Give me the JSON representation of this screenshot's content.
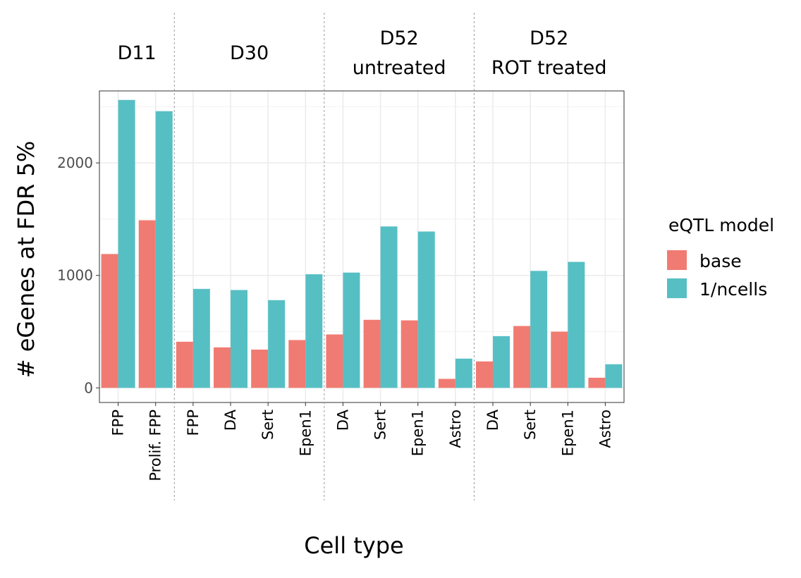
{
  "chart_data": {
    "type": "bar",
    "xlabel": "Cell type",
    "ylabel": "# eGenes at FDR 5%",
    "ylim": [
      -130,
      2640
    ],
    "yticks": [
      0,
      1000,
      2000
    ],
    "grid": true,
    "legend": {
      "title": "eQTL model",
      "placement": "right"
    },
    "groups": [
      {
        "label_lines": [
          "D11"
        ],
        "categories": [
          "FPP",
          "Prolif. FPP"
        ]
      },
      {
        "label_lines": [
          "D30"
        ],
        "categories": [
          "FPP",
          "DA",
          "Sert",
          "Epen1"
        ]
      },
      {
        "label_lines": [
          "D52",
          "untreated"
        ],
        "categories": [
          "DA",
          "Sert",
          "Epen1",
          "Astro"
        ]
      },
      {
        "label_lines": [
          "D52",
          "ROT treated"
        ],
        "categories": [
          "DA",
          "Sert",
          "Epen1",
          "Astro"
        ]
      }
    ],
    "categories": [
      "FPP",
      "Prolif. FPP",
      "FPP",
      "DA",
      "Sert",
      "Epen1",
      "DA",
      "Sert",
      "Epen1",
      "Astro",
      "DA",
      "Sert",
      "Epen1",
      "Astro"
    ],
    "series": [
      {
        "name": "base",
        "color": "#F07B72",
        "values": [
          1190,
          1490,
          410,
          360,
          340,
          425,
          475,
          605,
          600,
          80,
          235,
          550,
          500,
          90
        ]
      },
      {
        "name": "1/ncells",
        "color": "#56BFC4",
        "values": [
          2560,
          2460,
          880,
          870,
          780,
          1010,
          1025,
          1435,
          1390,
          260,
          460,
          1040,
          1120,
          210
        ]
      }
    ]
  }
}
